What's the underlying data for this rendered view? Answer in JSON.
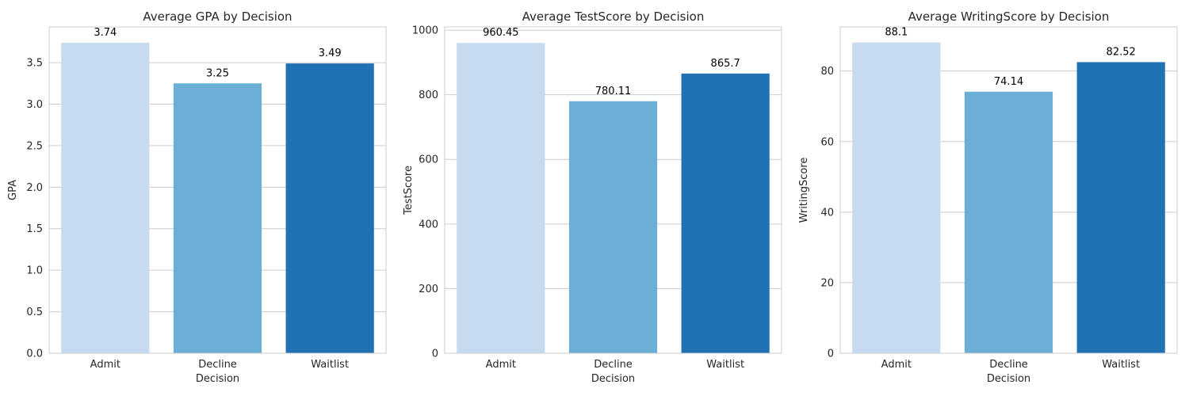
{
  "colors": {
    "categories": [
      "#c6dbef",
      "#6baed6",
      "#2171b5"
    ],
    "grid": "#cccccc",
    "text": "#262626"
  },
  "chart_data": [
    {
      "type": "bar",
      "title": "Average GPA by Decision",
      "xlabel": "Decision",
      "ylabel": "GPA",
      "categories": [
        "Admit",
        "Decline",
        "Waitlist"
      ],
      "values": [
        3.74,
        3.25,
        3.49
      ],
      "value_labels": [
        "3.74",
        "3.25",
        "3.49"
      ],
      "ylim": [
        0,
        3.93
      ],
      "yticks": [
        0.0,
        0.5,
        1.0,
        1.5,
        2.0,
        2.5,
        3.0,
        3.5
      ],
      "ytick_labels": [
        "0.0",
        "0.5",
        "1.0",
        "1.5",
        "2.0",
        "2.5",
        "3.0",
        "3.5"
      ],
      "grid": true,
      "legend": false
    },
    {
      "type": "bar",
      "title": "Average TestScore by Decision",
      "xlabel": "Decision",
      "ylabel": "TestScore",
      "categories": [
        "Admit",
        "Decline",
        "Waitlist"
      ],
      "values": [
        960.45,
        780.11,
        865.7
      ],
      "value_labels": [
        "960.45",
        "780.11",
        "865.7"
      ],
      "ylim": [
        0,
        1010
      ],
      "yticks": [
        0,
        200,
        400,
        600,
        800,
        1000
      ],
      "ytick_labels": [
        "0",
        "200",
        "400",
        "600",
        "800",
        "1000"
      ],
      "grid": true,
      "legend": false
    },
    {
      "type": "bar",
      "title": "Average WritingScore by Decision",
      "xlabel": "Decision",
      "ylabel": "WritingScore",
      "categories": [
        "Admit",
        "Decline",
        "Waitlist"
      ],
      "values": [
        88.1,
        74.14,
        82.52
      ],
      "value_labels": [
        "88.1",
        "74.14",
        "82.52"
      ],
      "ylim": [
        0,
        92.5
      ],
      "yticks": [
        0,
        20,
        40,
        60,
        80
      ],
      "ytick_labels": [
        "0",
        "20",
        "40",
        "60",
        "80"
      ],
      "grid": true,
      "legend": false
    }
  ]
}
